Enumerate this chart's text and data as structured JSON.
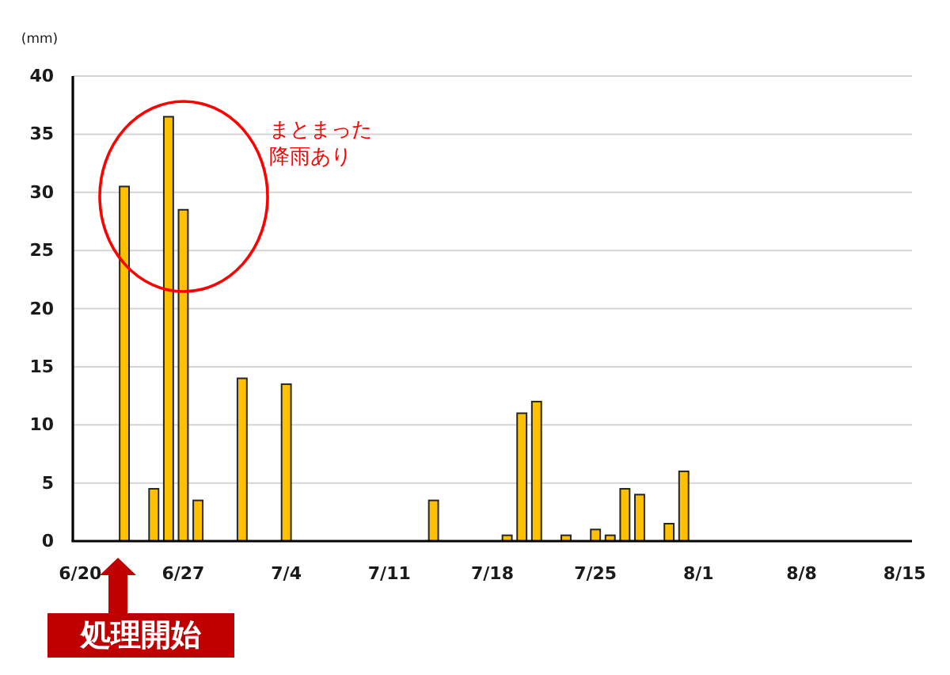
{
  "chart_data": {
    "type": "bar",
    "ylabel": "(mm)",
    "categories": [
      "6/20",
      null,
      null,
      null,
      null,
      null,
      null,
      "6/27",
      null,
      null,
      null,
      null,
      null,
      null,
      "7/4",
      null,
      null,
      null,
      null,
      null,
      null,
      "7/11",
      null,
      null,
      null,
      null,
      null,
      null,
      "7/18",
      null,
      null,
      null,
      null,
      null,
      null,
      "7/25",
      null,
      null,
      null,
      null,
      null,
      null,
      "8/1",
      null,
      null,
      null,
      null,
      null,
      null,
      "8/8",
      null,
      null,
      null,
      null,
      null,
      null,
      "8/15"
    ],
    "values": [
      null,
      null,
      null,
      30.5,
      null,
      4.5,
      36.5,
      28.5,
      3.5,
      null,
      null,
      14,
      null,
      null,
      13.5,
      null,
      null,
      null,
      null,
      null,
      null,
      null,
      null,
      null,
      3.5,
      null,
      null,
      null,
      null,
      0.5,
      11,
      12,
      null,
      0.5,
      null,
      1,
      0.5,
      4.5,
      4,
      null,
      1.5,
      6,
      null,
      null,
      null,
      null,
      null,
      null,
      null,
      null,
      null,
      null,
      null,
      null,
      null,
      null,
      null
    ],
    "color": "#ffc000",
    "ylim": [
      0,
      40
    ],
    "yticks": [
      0,
      5,
      10,
      15,
      20,
      25,
      30,
      35,
      40
    ],
    "grid": "y",
    "annotations": [
      "まとまった降雨あり",
      "処理開始"
    ]
  }
}
